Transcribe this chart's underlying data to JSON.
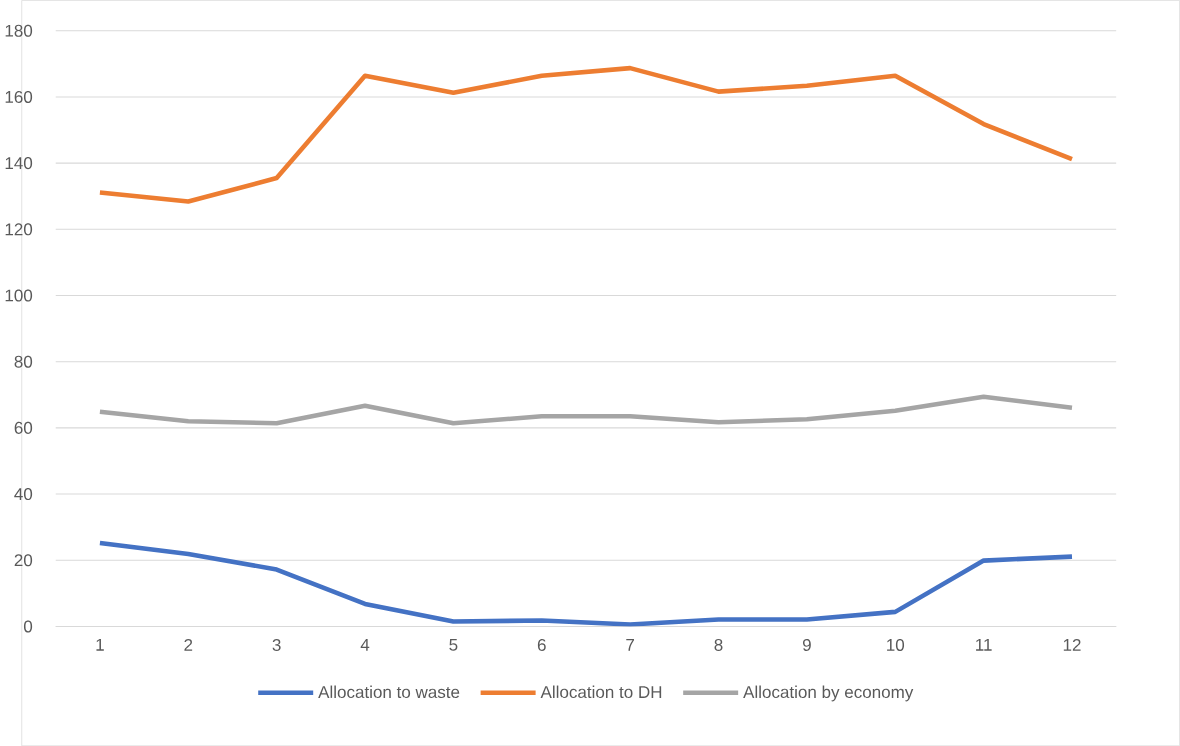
{
  "chart_data": {
    "type": "line",
    "categories": [
      "1",
      "2",
      "3",
      "4",
      "5",
      "6",
      "7",
      "8",
      "9",
      "10",
      "11",
      "12"
    ],
    "series": [
      {
        "name": "Allocation to waste",
        "color": "#4472c4",
        "values": [
          25.2,
          21.9,
          17.2,
          6.8,
          1.5,
          1.8,
          0.6,
          2.1,
          2.1,
          4.4,
          19.9,
          21.1
        ]
      },
      {
        "name": "Allocation to DH",
        "color": "#ed7d31",
        "values": [
          131.1,
          128.4,
          135.5,
          166.4,
          161.3,
          166.4,
          168.7,
          161.6,
          163.4,
          166.4,
          151.8,
          141.2
        ]
      },
      {
        "name": "Allocation by economy",
        "color": "#a5a5a5",
        "values": [
          64.9,
          62.0,
          61.4,
          66.7,
          61.4,
          63.5,
          63.5,
          61.7,
          62.6,
          65.2,
          69.4,
          66.1
        ]
      }
    ],
    "ylim": [
      0,
      180
    ],
    "yticks": [
      0,
      20,
      40,
      60,
      80,
      100,
      120,
      140,
      160,
      180
    ],
    "grid": "y",
    "legend": "bottom",
    "marker": "none",
    "line_style": "solid"
  }
}
